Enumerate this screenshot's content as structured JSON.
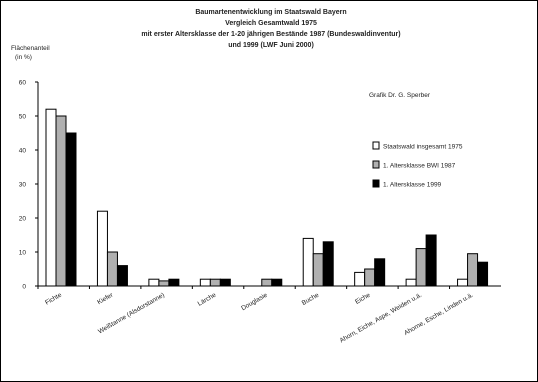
{
  "chart_data": {
    "type": "bar",
    "title_lines": [
      "Baumartenentwicklung im Staatswald Bayern",
      "Vergleich Gesamtwald 1975",
      "mit erster Altersklasse der 1-20 jährigen Bestände 1987 (Bundeswaldinventur)",
      "und 1999 (LWF Juni 2000)"
    ],
    "ylabel_lines": [
      "Flächenanteil",
      "(in %)"
    ],
    "credit": "Grafik Dr. G. Sperber",
    "categories": [
      "Fichte",
      "Kiefer",
      "Weißtanne (Alsdorstanne)",
      "Lärche",
      "Douglasie",
      "Buche",
      "Eiche",
      "Ahorn, Eiche, Aspe, Weiden u.ä.",
      "Ahorne, Esche, Linden u.ä."
    ],
    "series": [
      {
        "name": "Staatswald insgesamt 1975",
        "values": [
          52,
          22,
          2,
          2,
          0,
          14,
          4,
          2,
          2
        ]
      },
      {
        "name": "1. Altersklasse BWI 1987",
        "values": [
          50,
          10,
          1.5,
          2,
          2,
          9.5,
          5,
          11,
          9.5
        ]
      },
      {
        "name": "1. Altersklasse 1999",
        "values": [
          45,
          6,
          2,
          2,
          2,
          13,
          8,
          15,
          7
        ]
      }
    ],
    "ylim": [
      0,
      60
    ],
    "yticks": [
      0,
      10,
      20,
      30,
      40,
      50,
      60
    ],
    "legend_position": "right",
    "colors": [
      "#ffffff",
      "#b0b0b0",
      "#000000"
    ]
  }
}
